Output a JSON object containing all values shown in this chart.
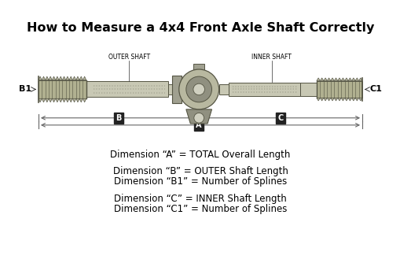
{
  "title": "How to Measure a 4x4 Front Axle Shaft Correctly",
  "title_fontsize": 11.5,
  "bg_color": "#ffffff",
  "text_color": "#000000",
  "labels": {
    "B1": "B1",
    "C1": "C1",
    "OUTER_SHAFT": "OUTER SHAFT",
    "INNER_SHAFT": "INNER SHAFT"
  },
  "dim_texts": [
    "Dimension “A” = TOTAL Overall Length",
    "Dimension “B” = OUTER Shaft Length",
    "Dimension “B1” = Number of Splines",
    "Dimension “C” = INNER Shaft Length",
    "Dimension “C1” = Number of Splines"
  ],
  "line_color": "#333333",
  "shaft_fill": "#c8c8b4",
  "shaft_edge": "#555544",
  "dim_line_color": "#666666",
  "box_bg": "#222222",
  "box_fg": "#ffffff",
  "spline_fill": "#b0b090",
  "cv_fill1": "#b8b8a0",
  "cv_fill2": "#909080",
  "cv_fill3": "#d0d0c0"
}
